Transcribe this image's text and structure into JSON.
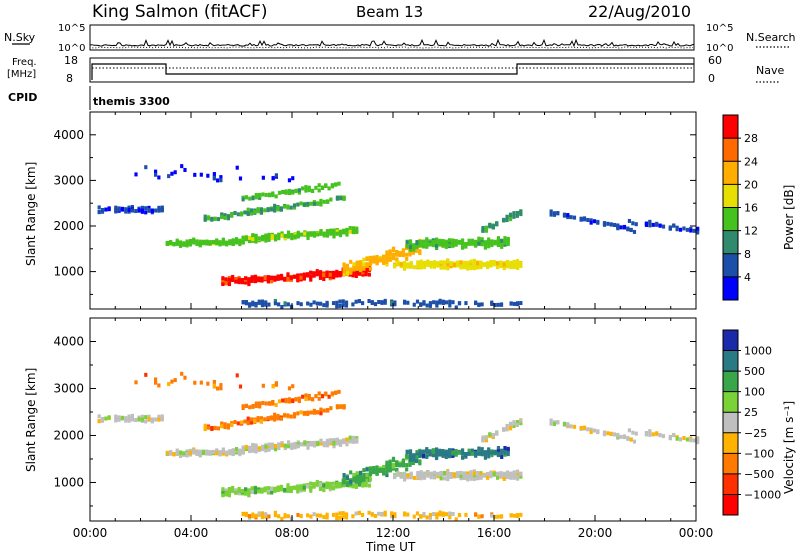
{
  "header": {
    "site": "King Salmon (fitACF)",
    "beam": "Beam 13",
    "date": "22/Aug/2010"
  },
  "meta_panels": {
    "nsky": {
      "label": "N.Sky",
      "ticks": [
        "10^5",
        "10^0"
      ]
    },
    "nsearch": {
      "label": "N.Search",
      "ticks": [
        "10^5",
        "10^0"
      ]
    },
    "freq": {
      "label_1": "Freq.",
      "label_2": "[MHz]",
      "ticks": [
        "18",
        "8"
      ]
    },
    "nave": {
      "label": "Nave",
      "ticks": [
        "60",
        "0"
      ]
    },
    "cpid": {
      "label": "CPID",
      "value": "themis 3300"
    }
  },
  "chart_data": [
    {
      "type": "heatmap",
      "title": "Power",
      "ylabel": "Slant Range [km]",
      "xlabel": "Time UT",
      "x_ticks": [
        "00:00",
        "04:00",
        "08:00",
        "12:00",
        "16:00",
        "20:00",
        "00:00"
      ],
      "xlim_hours": [
        0,
        24
      ],
      "y_ticks": [
        "1000",
        "2000",
        "3000",
        "4000"
      ],
      "ylim_km": [
        180,
        4500
      ],
      "colorbar": {
        "label": "Power [dB]",
        "ticks": [
          "4",
          "8",
          "12",
          "16",
          "20",
          "24",
          "28"
        ],
        "range": [
          0,
          30
        ]
      },
      "colors": [
        "#0000ff",
        "#1c4faa",
        "#2f8a6e",
        "#46c21e",
        "#e6df00",
        "#ffae00",
        "#ff6a00",
        "#ff0000"
      ],
      "grid": false
    },
    {
      "type": "heatmap",
      "title": "Velocity",
      "ylabel": "Slant Range [km]",
      "xlabel": "Time UT",
      "x_ticks": [
        "00:00",
        "04:00",
        "08:00",
        "12:00",
        "16:00",
        "20:00",
        "00:00"
      ],
      "xlim_hours": [
        0,
        24
      ],
      "y_ticks": [
        "1000",
        "2000",
        "3000",
        "4000"
      ],
      "ylim_km": [
        180,
        4500
      ],
      "colorbar": {
        "label": "Velocity [m s⁻¹]",
        "ticks": [
          "1000",
          "500",
          "100",
          "25",
          "−25",
          "−100",
          "−500",
          "−1000"
        ]
      },
      "colors": [
        "#1a2aa8",
        "#2a7a86",
        "#3aa64a",
        "#7ad236",
        "#bfbfbf",
        "#ffb300",
        "#ff7a00",
        "#ff3000",
        "#ff0000"
      ],
      "grid": false
    }
  ]
}
